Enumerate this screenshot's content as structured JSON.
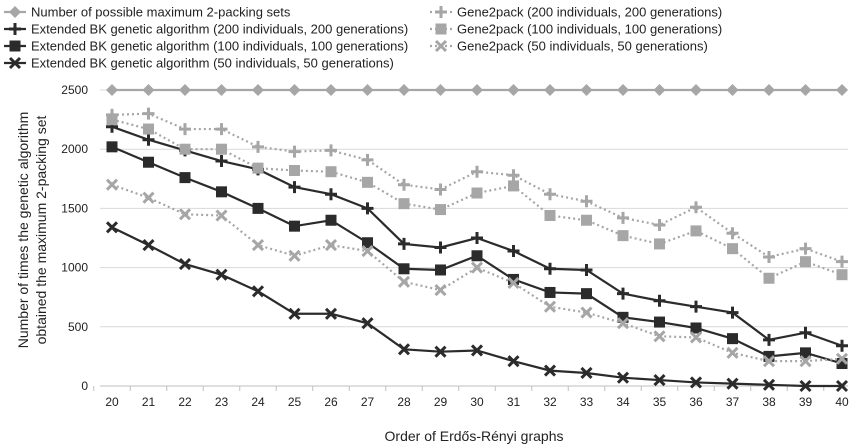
{
  "chart_data": {
    "type": "line",
    "title": "",
    "xlabel": "Order of Erdős-Rényi graphs",
    "ylabel_lines": [
      "Number of times the genetic algorithm",
      "obtained the maximum 2-packing set"
    ],
    "x": [
      20,
      21,
      22,
      23,
      24,
      25,
      26,
      27,
      28,
      29,
      30,
      31,
      32,
      33,
      34,
      35,
      36,
      37,
      38,
      39,
      40
    ],
    "ylim": [
      0,
      2500
    ],
    "yticks": [
      0,
      500,
      1000,
      1500,
      2000,
      2500
    ],
    "grid": "horizontal",
    "legend_position": "top",
    "series": [
      {
        "name": "Number of possible maximum 2-packing sets",
        "color": "#a6a6a6",
        "dash": "solid",
        "marker": "diamond",
        "values": [
          2500,
          2500,
          2500,
          2500,
          2500,
          2500,
          2500,
          2500,
          2500,
          2500,
          2500,
          2500,
          2500,
          2500,
          2500,
          2500,
          2500,
          2500,
          2500,
          2500,
          2500
        ]
      },
      {
        "name": "Extended BK genetic algorithm (200 individuals, 200 generations)",
        "color": "#2b2b2b",
        "dash": "solid",
        "marker": "plus",
        "values": [
          2190,
          2080,
          1990,
          1900,
          1830,
          1680,
          1620,
          1500,
          1200,
          1170,
          1250,
          1140,
          990,
          980,
          780,
          720,
          670,
          620,
          390,
          450,
          340
        ]
      },
      {
        "name": "Extended BK genetic algorithm (100 individuals, 100 generations)",
        "color": "#2b2b2b",
        "dash": "solid",
        "marker": "square",
        "values": [
          2020,
          1890,
          1760,
          1640,
          1500,
          1350,
          1400,
          1210,
          990,
          980,
          1100,
          900,
          790,
          780,
          580,
          540,
          490,
          400,
          250,
          280,
          190
        ]
      },
      {
        "name": "Extended BK genetic algorithm (50 individuals, 50 generations)",
        "color": "#2b2b2b",
        "dash": "solid",
        "marker": "x",
        "values": [
          1340,
          1190,
          1030,
          940,
          800,
          610,
          610,
          530,
          310,
          290,
          300,
          210,
          130,
          110,
          70,
          50,
          30,
          20,
          10,
          0,
          0
        ]
      },
      {
        "name": "Gene2pack (200 individuals, 200 generations)",
        "color": "#a6a6a6",
        "dash": "dotted",
        "marker": "plus",
        "values": [
          2290,
          2300,
          2170,
          2170,
          2020,
          1980,
          1990,
          1910,
          1700,
          1660,
          1810,
          1780,
          1620,
          1560,
          1420,
          1360,
          1510,
          1290,
          1090,
          1160,
          1050
        ]
      },
      {
        "name": "Gene2pack (100 individuals, 100 generations)",
        "color": "#a6a6a6",
        "dash": "dotted",
        "marker": "square",
        "values": [
          2250,
          2170,
          2000,
          2000,
          1840,
          1820,
          1810,
          1720,
          1540,
          1490,
          1630,
          1690,
          1440,
          1400,
          1270,
          1200,
          1310,
          1160,
          910,
          1050,
          940
        ]
      },
      {
        "name": "Gene2pack (50 individuals, 50 generations)",
        "color": "#a6a6a6",
        "dash": "dotted",
        "marker": "x",
        "values": [
          1700,
          1590,
          1450,
          1440,
          1190,
          1100,
          1190,
          1140,
          880,
          810,
          1000,
          870,
          670,
          620,
          530,
          420,
          410,
          280,
          210,
          210,
          230
        ]
      }
    ],
    "legend_columns": [
      [
        0,
        1,
        2,
        3
      ],
      [
        4,
        5,
        6
      ]
    ]
  }
}
